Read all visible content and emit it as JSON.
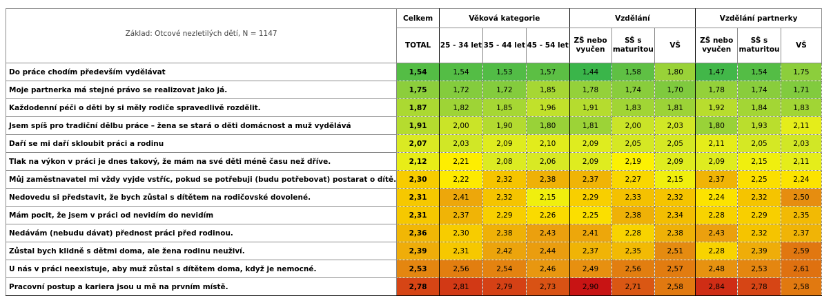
{
  "header": {
    "basis": "Základ: Otcové nezletilých dětí, N = 1147",
    "total_group": "Celkem",
    "total_col": "TOTAL",
    "groups": [
      {
        "label": "Věková kategorie",
        "cols": [
          "25 - 34 let",
          "35 - 44 let",
          "45 - 54 let"
        ]
      },
      {
        "label": "Vzdělání",
        "cols": [
          "ZŠ nebo vyučen",
          "SŠ s maturitou",
          "VŠ"
        ]
      },
      {
        "label": "Vzdělání partnerky",
        "cols": [
          "ZŠ nebo vyučen",
          "SŠ s maturitou",
          "VŠ"
        ]
      }
    ]
  },
  "rows": [
    {
      "label": "Do práce chodím především vydělávat",
      "total": "1,54",
      "values": [
        "1,54",
        "1,53",
        "1,57",
        "1,44",
        "1,58",
        "1,80",
        "1,47",
        "1,54",
        "1,75"
      ]
    },
    {
      "label": "Moje partnerka má stejné právo se realizovat jako já.",
      "total": "1,75",
      "values": [
        "1,72",
        "1,72",
        "1,85",
        "1,78",
        "1,74",
        "1,70",
        "1,78",
        "1,74",
        "1,71"
      ]
    },
    {
      "label": "Každodenní péči o děti by si měly rodiče spravedlivě rozdělit.",
      "total": "1,87",
      "values": [
        "1,82",
        "1,85",
        "1,96",
        "1,91",
        "1,83",
        "1,81",
        "1,92",
        "1,84",
        "1,83"
      ]
    },
    {
      "label": "Jsem spíš pro tradiční dělbu práce – žena se stará o děti domácnost a muž vydělává",
      "total": "1,91",
      "values": [
        "2,00",
        "1,90",
        "1,80",
        "1,81",
        "2,00",
        "2,03",
        "1,80",
        "1,93",
        "2,11"
      ]
    },
    {
      "label": "Daří se mi daří skloubit práci a rodinu",
      "total": "2,07",
      "values": [
        "2,03",
        "2,09",
        "2,10",
        "2,09",
        "2,05",
        "2,05",
        "2,11",
        "2,05",
        "2,03"
      ]
    },
    {
      "label": "Tlak na výkon v práci je dnes takový, že mám na své děti méně času než dříve.",
      "total": "2,12",
      "values": [
        "2,21",
        "2,08",
        "2,06",
        "2,09",
        "2,19",
        "2,09",
        "2,09",
        "2,15",
        "2,11"
      ]
    },
    {
      "label": "Můj zaměstnavatel mi vždy vyjde vstříc, pokud se potřebuji (budu potřebovat) postarat o dítě.",
      "total": "2,30",
      "values": [
        "2,22",
        "2,32",
        "2,38",
        "2,37",
        "2,27",
        "2,15",
        "2,37",
        "2,25",
        "2,24"
      ]
    },
    {
      "label": "Nedovedu si představit, že bych zůstal s dítětem na rodičovské dovolené.",
      "total": "2,31",
      "values": [
        "2,41",
        "2,32",
        "2,15",
        "2,29",
        "2,33",
        "2,32",
        "2,24",
        "2,32",
        "2,50"
      ]
    },
    {
      "label": "Mám pocit, že jsem v práci od nevidím do nevidím",
      "total": "2,31",
      "values": [
        "2,37",
        "2,29",
        "2,26",
        "2,25",
        "2,38",
        "2,34",
        "2,28",
        "2,29",
        "2,35"
      ]
    },
    {
      "label": "Nedávám (nebudu dávat) přednost práci před rodinou.",
      "total": "2,36",
      "values": [
        "2,30",
        "2,38",
        "2,43",
        "2,41",
        "2,28",
        "2,38",
        "2,43",
        "2,32",
        "2,37"
      ]
    },
    {
      "label": "Zůstal bych klidně s dětmi doma, ale žena rodinu neuživí.",
      "total": "2,39",
      "values": [
        "2,31",
        "2,42",
        "2,44",
        "2,37",
        "2,35",
        "2,51",
        "2,28",
        "2,39",
        "2,59"
      ]
    },
    {
      "label": "U nás v práci neexistuje,  aby muž zůstal s dítětem doma, když je nemocné.",
      "total": "2,53",
      "values": [
        "2,56",
        "2,54",
        "2,46",
        "2,49",
        "2,56",
        "2,57",
        "2,48",
        "2,53",
        "2,61"
      ]
    },
    {
      "label": "Pracovní postup a kariera jsou u mě na prvním místě.",
      "total": "2,78",
      "values": [
        "2,81",
        "2,79",
        "2,73",
        "2,90",
        "2,71",
        "2,58",
        "2,84",
        "2,78",
        "2,58"
      ]
    }
  ]
}
